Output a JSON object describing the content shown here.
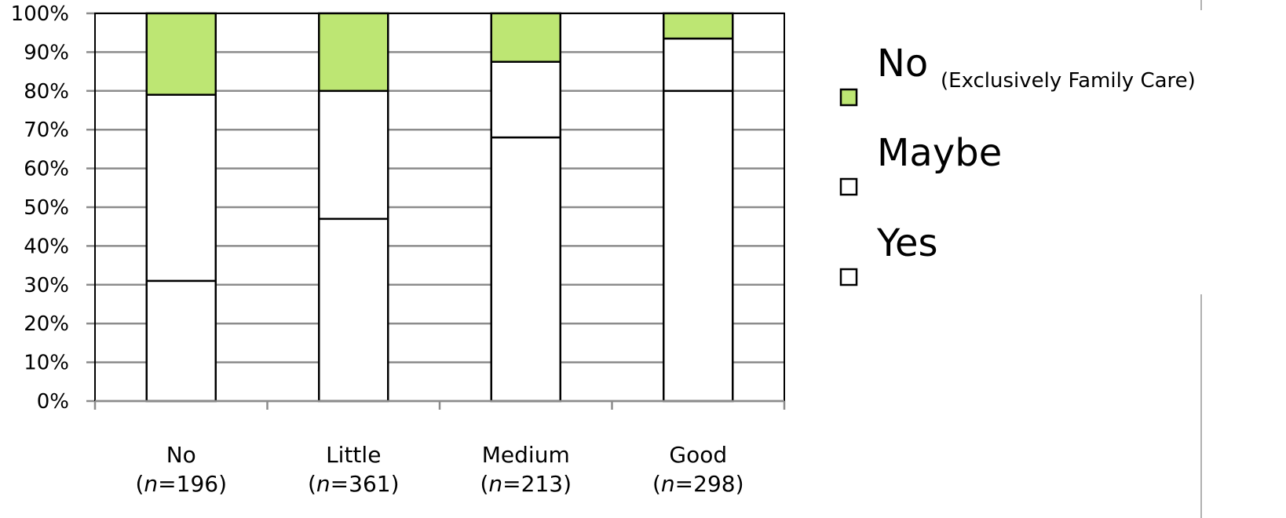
{
  "chart_data": {
    "type": "bar",
    "stacked": true,
    "percent": true,
    "categories": [
      {
        "label": "No",
        "n_prefix": "(",
        "n_var": "n",
        "n_eq": "=196)"
      },
      {
        "label": "Little",
        "n_prefix": "(",
        "n_var": "n",
        "n_eq": "=361)"
      },
      {
        "label": "Medium",
        "n_prefix": "(",
        "n_var": "n",
        "n_eq": "=213)"
      },
      {
        "label": "Good",
        "n_prefix": "(",
        "n_var": "n",
        "n_eq": "=298)"
      }
    ],
    "series": [
      {
        "name": "Yes",
        "values": [
          31,
          47,
          68,
          80
        ],
        "color": "#ffffff"
      },
      {
        "name": "Maybe",
        "values": [
          48,
          33,
          19.5,
          13.5
        ],
        "color": "#ffffff"
      },
      {
        "name": "No",
        "name_note": "(Exclusively Family Care)",
        "values": [
          21,
          20,
          12.5,
          6.5
        ],
        "color": "#bde673"
      }
    ],
    "y_ticks": [
      "0%",
      "10%",
      "20%",
      "30%",
      "40%",
      "50%",
      "60%",
      "70%",
      "80%",
      "90%",
      "100%"
    ],
    "ylim": [
      0,
      100
    ],
    "grid": true,
    "legend_position": "right",
    "legend_order": [
      "No",
      "Maybe",
      "Yes"
    ]
  }
}
